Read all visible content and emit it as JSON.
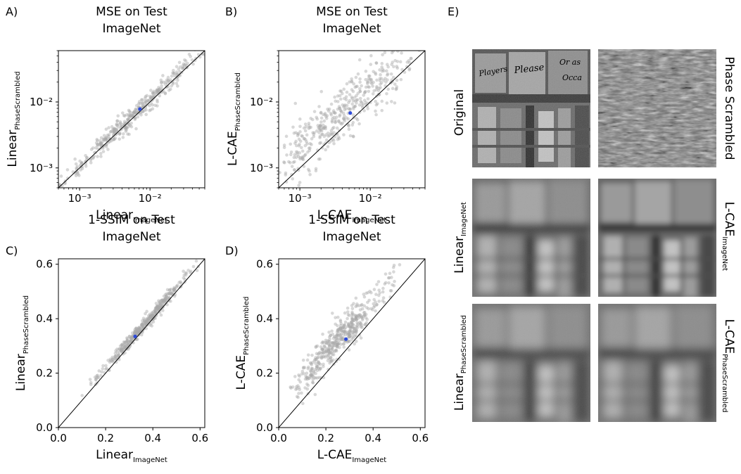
{
  "chart_data": [
    {
      "panel": "A)",
      "type": "scatter",
      "title_lines": [
        "MSE on Test",
        "ImageNet"
      ],
      "xlabel": "Linear",
      "xlabel_sub": "ImageNet",
      "ylabel": "Linear",
      "ylabel_sub": "PhaseScrambled",
      "scale": "log",
      "xlim": [
        0.0005,
        0.06
      ],
      "ylim": [
        0.0005,
        0.06
      ],
      "tick_values": [
        0.001,
        0.01
      ],
      "tick_labels": [
        "10⁻³",
        "10⁻²"
      ],
      "identity_line": true,
      "cloud": {
        "center": [
          0.0055,
          0.0058
        ],
        "spread": 0.55,
        "scatter_perp": 0.08,
        "offset": 0.02,
        "n": 420
      },
      "highlight_point": {
        "x": 0.0072,
        "y": 0.0078,
        "color": "#2e4bd9"
      }
    },
    {
      "panel": "B)",
      "type": "scatter",
      "title_lines": [
        "MSE on Test",
        "ImageNet"
      ],
      "xlabel": "L-CAE",
      "xlabel_sub": "ImageNet",
      "ylabel": "L-CAE",
      "ylabel_sub": "PhaseScrambled",
      "scale": "log",
      "xlim": [
        0.0005,
        0.06
      ],
      "ylim": [
        0.0005,
        0.06
      ],
      "tick_values": [
        0.001,
        0.01
      ],
      "tick_labels": [
        "10⁻³",
        "10⁻²"
      ],
      "identity_line": true,
      "cloud": {
        "center": [
          0.0045,
          0.0062
        ],
        "spread": 0.6,
        "scatter_perp": 0.22,
        "offset": 0.16,
        "n": 480
      },
      "highlight_point": {
        "x": 0.0052,
        "y": 0.0068,
        "color": "#2e4bd9"
      }
    },
    {
      "panel": "C)",
      "type": "scatter",
      "title_lines": [
        "1-SSIM on Test",
        "ImageNet"
      ],
      "xlabel": "Linear",
      "xlabel_sub": "ImageNet",
      "ylabel": "Linear",
      "ylabel_sub": "PhaseScrambled",
      "scale": "linear",
      "xlim": [
        0.0,
        0.62
      ],
      "ylim": [
        0.0,
        0.62
      ],
      "tick_values": [
        0.0,
        0.2,
        0.4,
        0.6
      ],
      "tick_labels": [
        "0.0",
        "0.2",
        "0.4",
        "0.6"
      ],
      "identity_line": true,
      "cloud": {
        "center": [
          0.36,
          0.37
        ],
        "spread": 0.09,
        "scatter_perp": 0.012,
        "offset": 0.012,
        "n": 420
      },
      "highlight_point": {
        "x": 0.325,
        "y": 0.335,
        "color": "#2e4bd9"
      }
    },
    {
      "panel": "D)",
      "type": "scatter",
      "title_lines": [
        "1-SSIM on Test",
        "ImageNet"
      ],
      "xlabel": "L-CAE",
      "xlabel_sub": "ImageNet",
      "ylabel": "L-CAE",
      "ylabel_sub": "PhaseScrambled",
      "scale": "linear",
      "xlim": [
        0.0,
        0.62
      ],
      "ylim": [
        0.0,
        0.62
      ],
      "tick_values": [
        0.0,
        0.2,
        0.4,
        0.6
      ],
      "tick_labels": [
        "0.0",
        "0.2",
        "0.4",
        "0.6"
      ],
      "identity_line": true,
      "cloud": {
        "center": [
          0.27,
          0.32
        ],
        "spread": 0.1,
        "scatter_perp": 0.03,
        "offset": 0.05,
        "n": 480
      },
      "highlight_point": {
        "x": 0.285,
        "y": 0.325,
        "color": "#2e4bd9"
      }
    }
  ],
  "image_grid": {
    "panel": "E)",
    "labels": {
      "original": "Original",
      "phase_scrambled": "Phase Scrambled",
      "linear_imagenet": {
        "main": "Linear",
        "sub": "ImageNet"
      },
      "lcae_imagenet": {
        "main": "L-CAE",
        "sub": "ImageNet"
      },
      "linear_phasescrambled": {
        "main": "Linear",
        "sub": "PhaseScrambled"
      },
      "lcae_phasescrambled": {
        "main": "L-CAE",
        "sub": "PhaseScrambled"
      }
    },
    "photo_sign_words": [
      "Players",
      "Please",
      "Or as",
      "Occa"
    ]
  },
  "colors": {
    "scatter_point": "#a9a9a9",
    "highlight_point": "#2e4bd9",
    "axis": "#000000"
  }
}
